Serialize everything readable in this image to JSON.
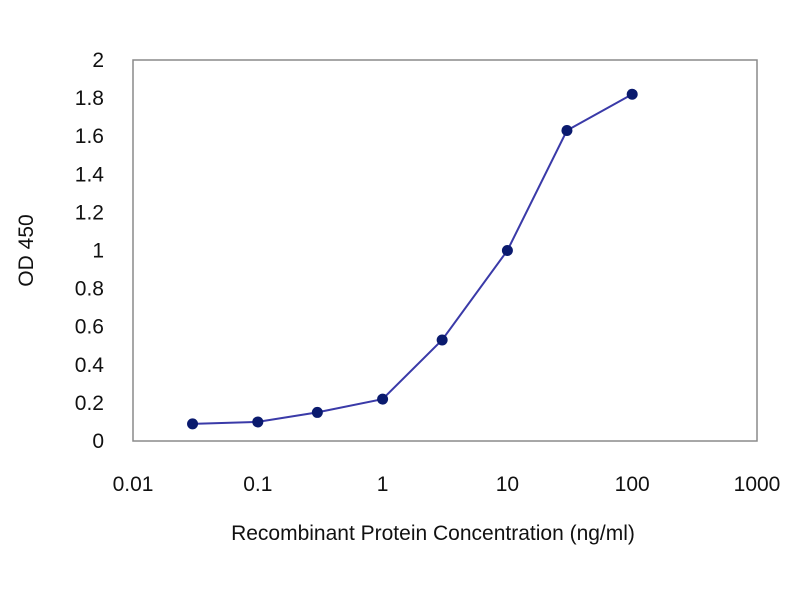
{
  "chart_data": {
    "type": "line",
    "title": "",
    "xlabel": "Recombinant Protein Concentration (ng/ml)",
    "ylabel": "OD 450",
    "x_scale": "log",
    "xlim": [
      0.01,
      1000
    ],
    "ylim": [
      0,
      2
    ],
    "x_ticks": [
      "0.01",
      "0.1",
      "1",
      "10",
      "100",
      "1000"
    ],
    "y_ticks": [
      "0",
      "0.2",
      "0.4",
      "0.6",
      "0.8",
      "1",
      "1.2",
      "1.4",
      "1.6",
      "1.8",
      "2"
    ],
    "grid": "horizontal",
    "series": [
      {
        "x": [
          0.03,
          0.1,
          0.3,
          1,
          3,
          10,
          30,
          100
        ],
        "y": [
          0.09,
          0.1,
          0.15,
          0.22,
          0.53,
          1.0,
          1.63,
          1.82
        ],
        "color": "#3a3aa8",
        "marker_color": "#0a1a6e"
      }
    ],
    "plot_background": "#ffffff",
    "grid_color": "#9a9a9a"
  }
}
